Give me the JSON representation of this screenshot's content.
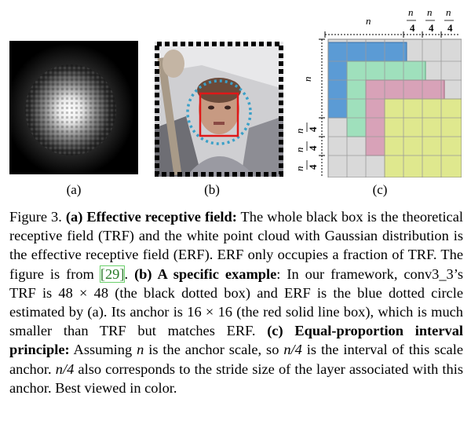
{
  "figure": {
    "sublabels": [
      "(a)",
      "(b)",
      "(c)"
    ],
    "panel_c": {
      "top_labels": [
        "n",
        "n",
        "4",
        "n",
        "4",
        "n",
        "4"
      ],
      "left_labels": [
        "n",
        "n",
        "4",
        "n",
        "4",
        "n",
        "4"
      ]
    },
    "colors": {
      "blue": "#5b9bd5",
      "green": "#9fe0bc",
      "pink": "#d8a2b8",
      "yellow": "#dfe88e",
      "grid_gray": "#d6d6d6",
      "face_box": "#e01818",
      "erf_dots": "#3aa0c8"
    }
  },
  "caption": {
    "fig_label": "Figure 3.",
    "a_title": "(a) Effective receptive field:",
    "a_text": " The whole black box is the theoretical receptive field (TRF) and the white point cloud with Gaussian distribution is the effective receptive field (ERF). ERF only occupies a fraction of TRF. The figure is from ",
    "a_ref": "[29]",
    "b_title": "(b) A specific example",
    "b_text": ": In our framework, conv3_3’s TRF is 48 × 48 (the black dotted box) and ERF is the blue dotted circle estimated by (a). Its anchor is 16 × 16 (the red solid line box), which is much smaller than TRF but matches ERF. ",
    "c_title": "(c) Equal-proportion interval principle:",
    "c_text1": " Assuming ",
    "n1": "n",
    "c_text2": " is the anchor scale, so ",
    "n4a": "n/4",
    "c_text3": " is the interval of this scale anchor. ",
    "n4b": "n/4",
    "c_text4": " also corresponds to the stride size of the layer associated with this anchor. Best viewed in color."
  }
}
